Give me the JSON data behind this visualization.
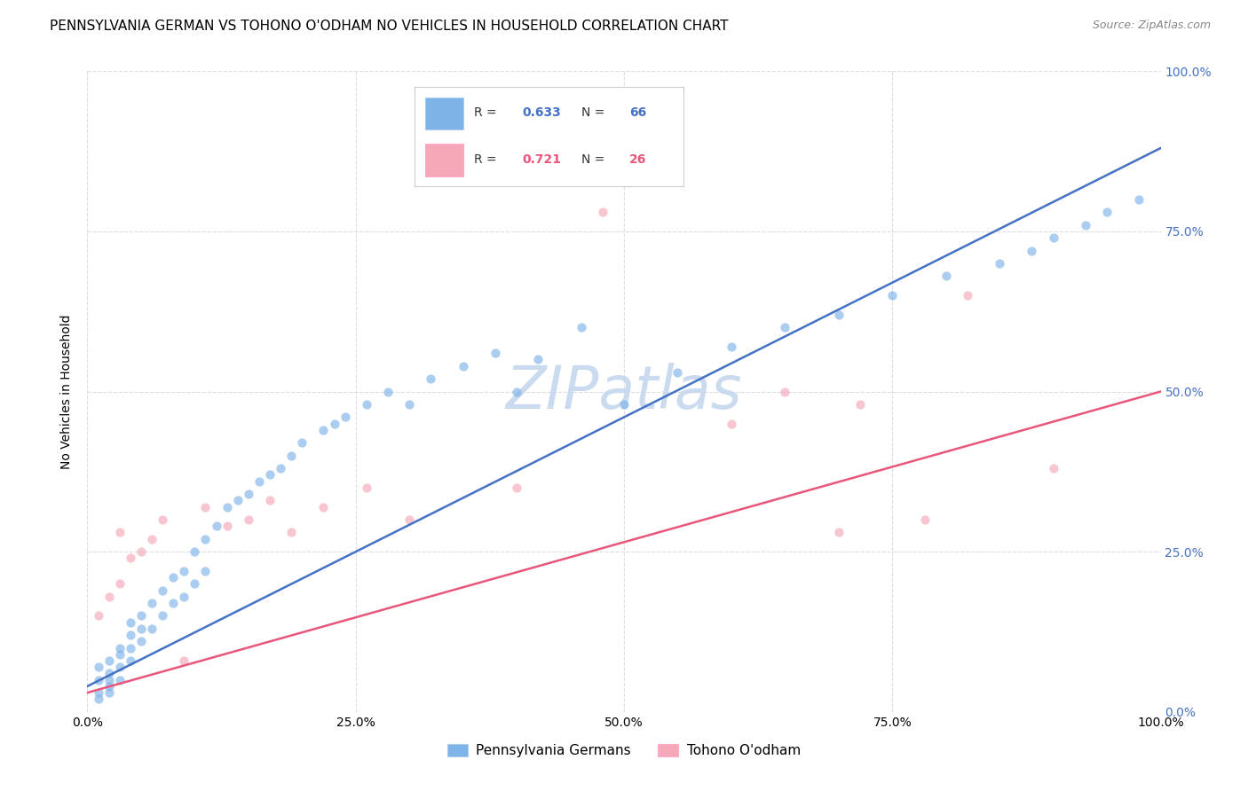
{
  "title": "PENNSYLVANIA GERMAN VS TOHONO O'ODHAM NO VEHICLES IN HOUSEHOLD CORRELATION CHART",
  "source": "Source: ZipAtlas.com",
  "ylabel": "No Vehicles in Household",
  "legend_label_blue": "Pennsylvania Germans",
  "legend_label_pink": "Tohono O'odham",
  "watermark": "ZIPatlas",
  "blue_R": "0.633",
  "blue_N": "66",
  "pink_R": "0.721",
  "pink_N": "26",
  "blue_scatter_color": "#7EB3E8",
  "pink_scatter_color": "#F4A8B8",
  "blue_line_color": "#4472C4",
  "pink_line_color": "#E9567B",
  "blue_line_x": [
    0,
    100
  ],
  "blue_line_y": [
    4,
    88
  ],
  "pink_line_x": [
    0,
    100
  ],
  "pink_line_y": [
    3,
    50
  ],
  "xlim": [
    0,
    100
  ],
  "ylim": [
    0,
    100
  ],
  "xtick_vals": [
    0,
    25,
    50,
    75,
    100
  ],
  "ytick_vals": [
    0,
    25,
    50,
    75,
    100
  ],
  "background_color": "#FFFFFF",
  "grid_color": "#DDDDDD",
  "title_fontsize": 11,
  "source_fontsize": 9,
  "axis_label_fontsize": 10,
  "tick_fontsize": 10,
  "legend_fontsize": 11,
  "watermark_fontsize": 48,
  "watermark_color": "#C5D8EE",
  "scatter_size": 55,
  "scatter_alpha": 0.65,
  "line_width": 1.8,
  "blue_scatter_x": [
    1,
    1,
    1,
    1,
    2,
    2,
    2,
    2,
    2,
    3,
    3,
    3,
    3,
    4,
    4,
    4,
    4,
    5,
    5,
    5,
    6,
    6,
    7,
    7,
    8,
    8,
    9,
    9,
    10,
    10,
    11,
    11,
    12,
    13,
    14,
    15,
    16,
    17,
    18,
    19,
    20,
    22,
    23,
    24,
    26,
    28,
    30,
    32,
    35,
    38,
    40,
    42,
    46,
    50,
    55,
    60,
    65,
    70,
    75,
    80,
    85,
    88,
    90,
    93,
    95,
    98
  ],
  "blue_scatter_y": [
    3,
    5,
    7,
    2,
    4,
    6,
    8,
    3,
    5,
    9,
    7,
    10,
    5,
    12,
    8,
    14,
    10,
    15,
    11,
    13,
    17,
    13,
    19,
    15,
    21,
    17,
    22,
    18,
    25,
    20,
    27,
    22,
    29,
    32,
    33,
    34,
    36,
    37,
    38,
    40,
    42,
    44,
    45,
    46,
    48,
    50,
    48,
    52,
    54,
    56,
    50,
    55,
    60,
    48,
    53,
    57,
    60,
    62,
    65,
    68,
    70,
    72,
    74,
    76,
    78,
    80
  ],
  "pink_scatter_x": [
    1,
    2,
    3,
    3,
    4,
    5,
    6,
    7,
    9,
    11,
    13,
    15,
    17,
    19,
    22,
    26,
    30,
    40,
    48,
    60,
    65,
    70,
    72,
    78,
    82,
    90
  ],
  "pink_scatter_y": [
    15,
    18,
    20,
    28,
    24,
    25,
    27,
    30,
    8,
    32,
    29,
    30,
    33,
    28,
    32,
    35,
    30,
    35,
    78,
    45,
    50,
    28,
    48,
    30,
    65,
    38
  ]
}
